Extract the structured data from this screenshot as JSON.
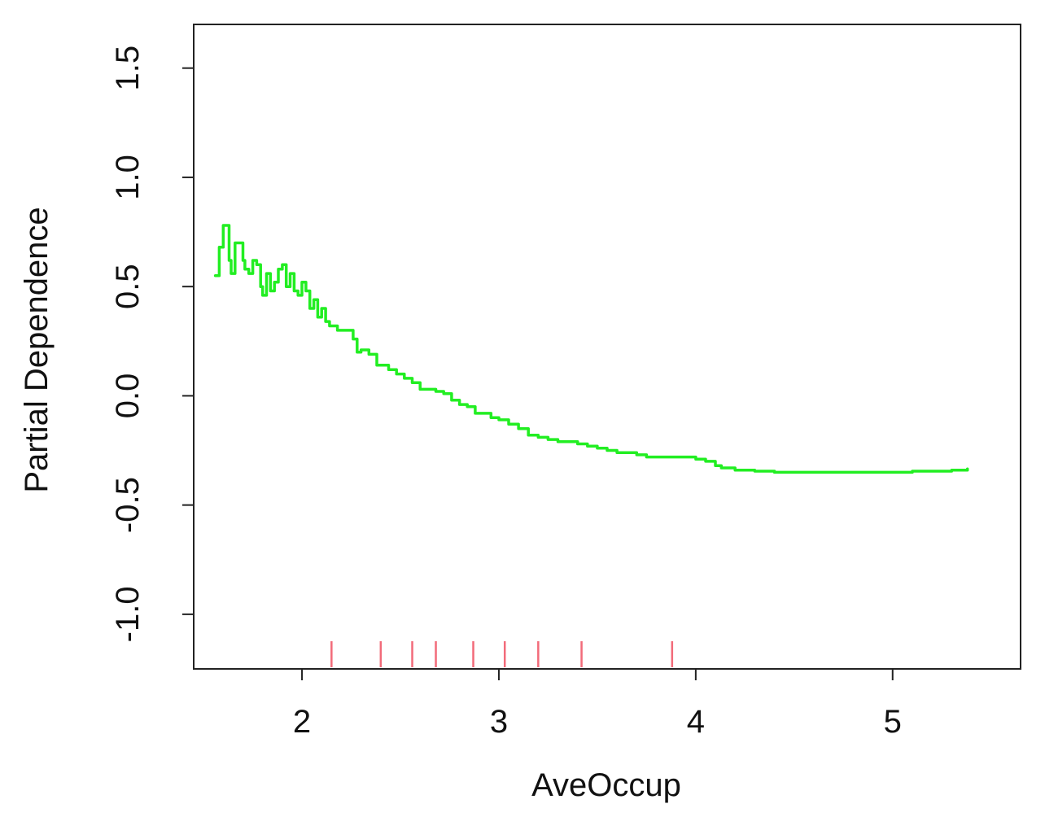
{
  "chart_data": {
    "type": "line",
    "title": "",
    "xlabel": "AveOccup",
    "ylabel": "Partial Dependence",
    "xlim": [
      1.45,
      5.65
    ],
    "ylim": [
      -1.25,
      1.7
    ],
    "x_ticks": [
      2,
      3,
      4,
      5
    ],
    "x_tick_labels": [
      "2",
      "3",
      "4",
      "5"
    ],
    "y_ticks": [
      -1.0,
      -0.5,
      0.0,
      0.5,
      1.0,
      1.5
    ],
    "y_tick_labels": [
      "-1.0",
      "-0.5",
      "0.0",
      "0.5",
      "1.0",
      "1.5"
    ],
    "grid": false,
    "series": [
      {
        "name": "Partial Dependence",
        "color": "#22ee22",
        "x": [
          1.56,
          1.58,
          1.6,
          1.61,
          1.63,
          1.64,
          1.66,
          1.68,
          1.7,
          1.71,
          1.73,
          1.75,
          1.77,
          1.79,
          1.8,
          1.82,
          1.84,
          1.86,
          1.88,
          1.9,
          1.92,
          1.94,
          1.96,
          1.98,
          2.0,
          2.02,
          2.04,
          2.06,
          2.08,
          2.1,
          2.12,
          2.14,
          2.18,
          2.22,
          2.26,
          2.28,
          2.3,
          2.34,
          2.38,
          2.4,
          2.44,
          2.48,
          2.52,
          2.56,
          2.6,
          2.64,
          2.68,
          2.72,
          2.76,
          2.8,
          2.84,
          2.88,
          2.92,
          2.96,
          3.0,
          3.05,
          3.1,
          3.15,
          3.2,
          3.25,
          3.3,
          3.35,
          3.4,
          3.45,
          3.5,
          3.55,
          3.6,
          3.65,
          3.7,
          3.75,
          3.8,
          3.85,
          3.9,
          3.95,
          4.0,
          4.05,
          4.08,
          4.1,
          4.13,
          4.16,
          4.2,
          4.25,
          4.3,
          4.4,
          4.5,
          4.6,
          4.7,
          4.8,
          4.9,
          5.0,
          5.1,
          5.2,
          5.3,
          5.35,
          5.38
        ],
        "y": [
          0.55,
          0.68,
          0.78,
          0.78,
          0.62,
          0.56,
          0.7,
          0.7,
          0.62,
          0.58,
          0.56,
          0.62,
          0.6,
          0.5,
          0.46,
          0.56,
          0.48,
          0.52,
          0.58,
          0.6,
          0.5,
          0.56,
          0.48,
          0.46,
          0.52,
          0.48,
          0.4,
          0.44,
          0.36,
          0.4,
          0.34,
          0.32,
          0.3,
          0.3,
          0.26,
          0.2,
          0.21,
          0.19,
          0.14,
          0.14,
          0.12,
          0.1,
          0.08,
          0.06,
          0.03,
          0.03,
          0.02,
          0.01,
          -0.02,
          -0.04,
          -0.05,
          -0.08,
          -0.08,
          -0.1,
          -0.11,
          -0.13,
          -0.15,
          -0.18,
          -0.19,
          -0.2,
          -0.21,
          -0.21,
          -0.22,
          -0.23,
          -0.24,
          -0.25,
          -0.26,
          -0.26,
          -0.27,
          -0.28,
          -0.28,
          -0.28,
          -0.28,
          -0.28,
          -0.29,
          -0.3,
          -0.3,
          -0.32,
          -0.33,
          -0.33,
          -0.34,
          -0.34,
          -0.345,
          -0.35,
          -0.35,
          -0.35,
          -0.35,
          -0.35,
          -0.35,
          -0.35,
          -0.345,
          -0.345,
          -0.34,
          -0.34,
          -0.335
        ]
      }
    ],
    "rug": {
      "color": "#f26b7a",
      "x": [
        2.15,
        2.4,
        2.56,
        2.68,
        2.87,
        3.03,
        3.2,
        3.42,
        3.88
      ]
    }
  }
}
